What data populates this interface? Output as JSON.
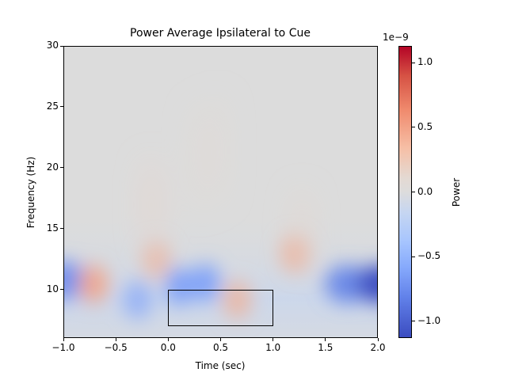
{
  "chart_data": {
    "type": "heatmap",
    "title": "Power Average Ipsilateral to Cue",
    "xlabel": "Time (sec)",
    "ylabel": "Frequency (Hz)",
    "xlim": [
      -1.0,
      2.0
    ],
    "ylim": [
      6,
      30
    ],
    "x_ticks": [
      "−1.0",
      "−0.5",
      "0.0",
      "0.5",
      "1.0",
      "1.5",
      "2.0"
    ],
    "x_tick_values": [
      -1.0,
      -0.5,
      0.0,
      0.5,
      1.0,
      1.5,
      2.0
    ],
    "y_ticks": [
      "10",
      "15",
      "20",
      "25",
      "30"
    ],
    "y_tick_values": [
      10,
      15,
      20,
      25,
      30
    ],
    "colormap": "coolwarm",
    "colorbar": {
      "label": "Power",
      "offset_text": "1e−9",
      "ticks": [
        "1.0",
        "0.5",
        "0.0",
        "−0.5",
        "−1.0"
      ],
      "tick_values": [
        1.0,
        0.5,
        0.0,
        -0.5,
        -1.0
      ],
      "range": [
        -1.13,
        1.13
      ],
      "scale": "1e-9"
    },
    "annotation_rectangle": {
      "t_start": 0.0,
      "t_end": 1.0,
      "f_low": 7,
      "f_high": 10
    },
    "blobs": [
      {
        "t": -1.0,
        "f": 10.8,
        "value": -0.7
      },
      {
        "t": -0.72,
        "f": 10.5,
        "value": 0.45
      },
      {
        "t": -0.3,
        "f": 9.2,
        "value": -0.45
      },
      {
        "t": -0.12,
        "f": 12.5,
        "value": 0.25
      },
      {
        "t": 0.1,
        "f": 10.3,
        "value": -0.6
      },
      {
        "t": 0.35,
        "f": 10.6,
        "value": -0.6
      },
      {
        "t": 0.65,
        "f": 9.2,
        "value": 0.3
      },
      {
        "t": 1.2,
        "f": 13.0,
        "value": 0.3
      },
      {
        "t": 1.7,
        "f": 10.5,
        "value": -0.75
      },
      {
        "t": 2.0,
        "f": 10.5,
        "value": -1.1
      }
    ]
  }
}
